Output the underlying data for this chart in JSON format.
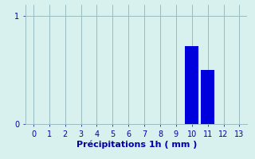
{
  "title": "",
  "xlabel": "Précipitations 1h ( mm )",
  "ylabel": "",
  "xlim": [
    -0.5,
    13.5
  ],
  "ylim": [
    0,
    1.1
  ],
  "xticks": [
    0,
    1,
    2,
    3,
    4,
    5,
    6,
    7,
    8,
    9,
    10,
    11,
    12,
    13
  ],
  "yticks": [
    0,
    1
  ],
  "categories": [
    0,
    1,
    2,
    3,
    4,
    5,
    6,
    7,
    8,
    9,
    10,
    11,
    12,
    13
  ],
  "values": [
    0,
    0,
    0,
    0,
    0,
    0,
    0,
    0,
    0,
    0,
    0.72,
    0.5,
    0,
    0
  ],
  "bar_color": "#0000dd",
  "bg_color": "#d8f0ee",
  "grid_color": "#9bbcbe",
  "tick_color": "#0000aa",
  "label_color": "#0000aa",
  "bar_width": 0.85,
  "xlabel_fontsize": 8,
  "tick_fontsize": 7
}
